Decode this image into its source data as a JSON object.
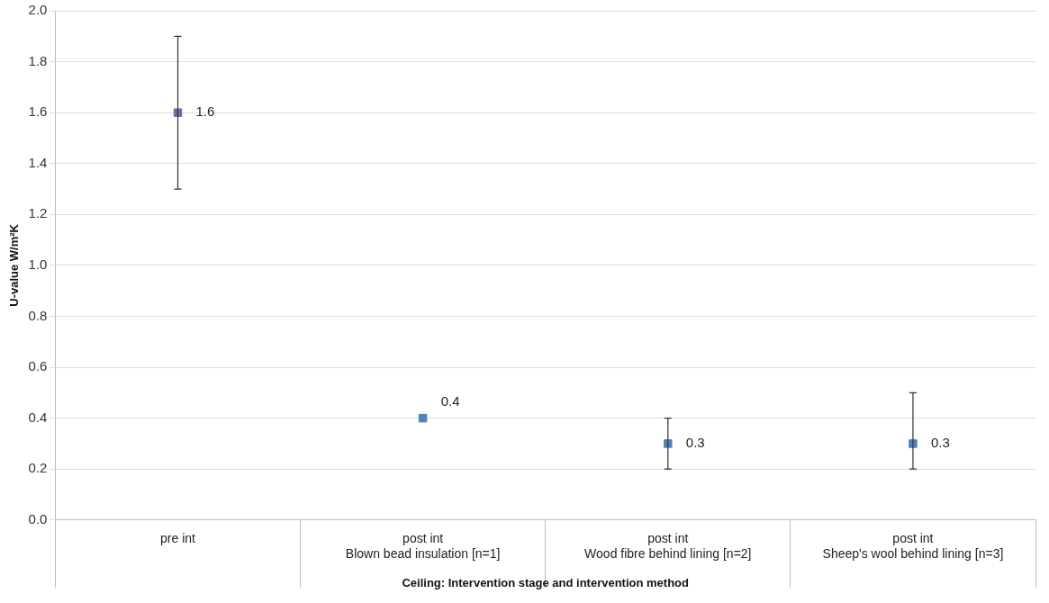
{
  "chart_data": {
    "type": "scatter",
    "xlabel": "Ceiling: Intervention stage and intervention method",
    "ylabel": "U-value W/m²K",
    "categories": [
      "pre int",
      "post int\nBlown bead insulation [n=1]",
      "post int\nWood fibre behind lining [n=2]",
      "post int\nSheep's wool behind lining [n=3]"
    ],
    "values": [
      1.6,
      0.4,
      0.3,
      0.3
    ],
    "colors": [
      "#8064a2",
      "#4f81bd",
      "#4f81bd",
      "#4f81bd"
    ],
    "errors": [
      [
        1.3,
        1.9
      ],
      null,
      [
        0.2,
        0.4
      ],
      [
        0.2,
        0.5
      ]
    ],
    "ylim": [
      0,
      2
    ],
    "yticks": [
      {
        "value": 0,
        "label": "0.0"
      },
      0.2,
      0.4,
      0.6,
      0.8,
      {
        "value": 1,
        "label": "1.0"
      },
      1.2,
      1.4,
      1.6,
      1.8,
      {
        "value": 2,
        "label": "2.0"
      }
    ],
    "marker": "square",
    "grid": "y",
    "data_labels": true
  }
}
